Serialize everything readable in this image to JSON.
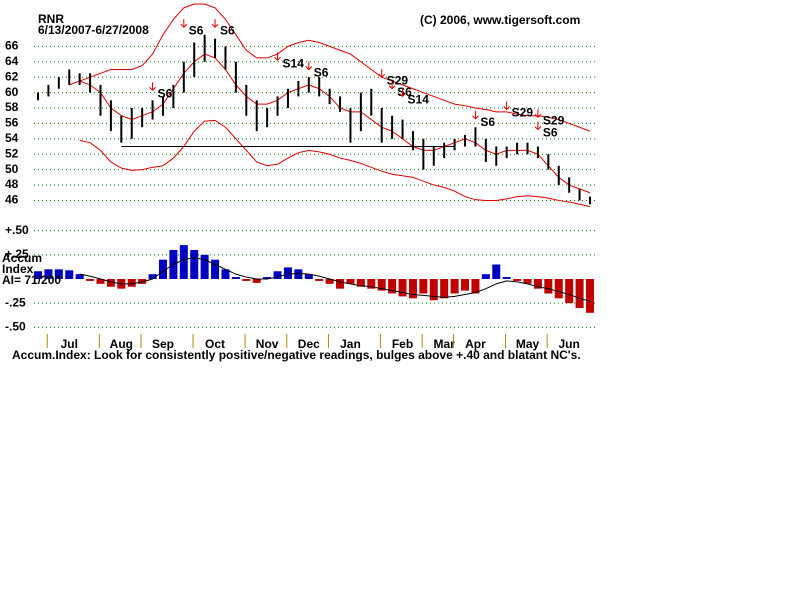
{
  "header": {
    "symbol": "RNR",
    "date_range": "6/13/2007-6/27/2008",
    "copyright": "(C) 2006, www.tigersoft.com"
  },
  "chart_data": [
    {
      "type": "range_bar",
      "categories": [
        null,
        null,
        null,
        "Jul",
        null,
        null,
        null,
        null,
        "Aug",
        null,
        null,
        null,
        "Sep",
        null,
        null,
        null,
        null,
        "Oct",
        null,
        null,
        null,
        null,
        "Nov",
        null,
        null,
        null,
        "Dec",
        null,
        null,
        null,
        "Jan",
        null,
        null,
        null,
        null,
        "Feb",
        null,
        null,
        null,
        "Mar",
        null,
        null,
        "Apr",
        null,
        null,
        null,
        null,
        "May",
        null,
        null,
        null,
        "Jun",
        null,
        null
      ],
      "highs": [
        60,
        61,
        62,
        63,
        62.5,
        62.5,
        61,
        59,
        57,
        58,
        58,
        59,
        59.5,
        61,
        64,
        66.5,
        67.5,
        67,
        66,
        64,
        61,
        59,
        58,
        59.5,
        60.5,
        61.5,
        62,
        62,
        60.5,
        59.5,
        58,
        60,
        60.5,
        58,
        57,
        56.5,
        55,
        54,
        53,
        53.5,
        54,
        54.5,
        55.5,
        54,
        53,
        53,
        53.5,
        53.5,
        53,
        52,
        50.5,
        49,
        47.5,
        46.5
      ],
      "lows": [
        59,
        59.5,
        60.5,
        61,
        61,
        60,
        57,
        55,
        53.5,
        54,
        55.5,
        56.5,
        57,
        58,
        60,
        62,
        64,
        64.5,
        63,
        60,
        57,
        55,
        55.5,
        57,
        58,
        59.5,
        60,
        59.5,
        58.5,
        57.5,
        53.5,
        55,
        57,
        53.5,
        54,
        54,
        52.5,
        50,
        50.5,
        51.5,
        52.5,
        53,
        53,
        51,
        50.5,
        51.5,
        52,
        52,
        51.5,
        50,
        48,
        47,
        46,
        45.5
      ],
      "upper_band": [
        null,
        null,
        null,
        null,
        61.5,
        62,
        62.5,
        63,
        63,
        63,
        63.5,
        65,
        67.5,
        69.5,
        71,
        71.5,
        71.5,
        71,
        69.5,
        67.5,
        65.5,
        64.5,
        64.5,
        65,
        66,
        66.5,
        66.8,
        66.5,
        66,
        65.5,
        65,
        64,
        63,
        62,
        61.5,
        61,
        60.5,
        60,
        59.5,
        59,
        58.5,
        58.3,
        58,
        57.8,
        57.5,
        57.5,
        57.2,
        57,
        57,
        56.8,
        56.5,
        56,
        55.5,
        55
      ],
      "lower_band": [
        null,
        null,
        null,
        null,
        53.8,
        53.5,
        52.5,
        51,
        50.2,
        49.9,
        50,
        50.3,
        50.5,
        51.5,
        53,
        55,
        56.3,
        56.4,
        55.5,
        54,
        52.5,
        51,
        50.5,
        50.7,
        51.5,
        52.2,
        52.5,
        52.3,
        52,
        51.5,
        51.2,
        50.8,
        50.3,
        49.8,
        49.4,
        49.2,
        49,
        48.5,
        48,
        47.7,
        47.2,
        46.5,
        46.1,
        46,
        46,
        46.2,
        46.5,
        46.6,
        46.5,
        46.3,
        46,
        45.8,
        45.5,
        45.2
      ],
      "moving_average": [
        null,
        null,
        null,
        61,
        61.5,
        61,
        60,
        58,
        57,
        56.5,
        57,
        57.5,
        58.5,
        60.5,
        62.5,
        64,
        65,
        64.5,
        63,
        61,
        59.5,
        58.5,
        58.5,
        59,
        60,
        60.5,
        61,
        60.5,
        59.5,
        58,
        57.5,
        57.5,
        56.5,
        55.5,
        55,
        54,
        53,
        52.5,
        52.5,
        53,
        53.5,
        54,
        53.5,
        52.5,
        52,
        52.5,
        52.5,
        52.5,
        52,
        50.5,
        49,
        48,
        47.5,
        47
      ],
      "neckline": [
        null,
        null,
        null,
        null,
        null,
        null,
        null,
        null,
        53,
        53,
        53,
        53,
        53,
        53,
        53,
        53,
        53,
        53,
        53,
        53,
        53,
        53,
        53,
        53,
        53,
        53,
        53,
        53,
        53,
        53,
        53,
        53,
        53,
        53,
        53,
        53,
        53,
        53,
        53,
        53,
        53,
        null,
        null,
        null,
        null,
        null,
        null,
        null,
        null,
        null,
        null,
        null,
        null,
        null
      ],
      "bar_color": "#000000",
      "band_color": "#e00000",
      "neckline_color": "#000000",
      "ylim": [
        44.5,
        71.5
      ],
      "yticks": [
        46,
        48,
        50,
        52,
        54,
        56,
        58,
        60,
        62,
        64,
        66
      ],
      "grid": true,
      "grid_color": "#008000",
      "annotations": [
        {
          "label": "S6",
          "index": 11,
          "y": 60.3
        },
        {
          "label": "S6",
          "index": 14,
          "y": 68.5
        },
        {
          "label": "S6",
          "index": 17,
          "y": 68.5
        },
        {
          "label": "S14",
          "index": 23,
          "y": 64.2
        },
        {
          "label": "S6",
          "index": 26,
          "y": 63
        },
        {
          "label": "S29",
          "index": 33,
          "y": 62
        },
        {
          "label": "S6",
          "index": 34,
          "y": 60.5
        },
        {
          "label": "S14",
          "index": 35,
          "y": 59.5
        },
        {
          "label": "S6",
          "index": 42,
          "y": 56.6
        },
        {
          "label": "S29",
          "index": 45,
          "y": 57.8
        },
        {
          "label": "S29",
          "index": 48,
          "y": 56.8
        },
        {
          "label": "S6",
          "index": 48,
          "y": 55.2
        }
      ],
      "annotation_color": "#e00000"
    },
    {
      "type": "bar",
      "title_lines": [
        "Accum",
        "Index"
      ],
      "ai_label": "AI= 71/200",
      "values": [
        0.08,
        0.1,
        0.1,
        0.09,
        0.05,
        -0.02,
        -0.05,
        -0.08,
        -0.1,
        -0.08,
        -0.05,
        0.05,
        0.2,
        0.3,
        0.35,
        0.3,
        0.25,
        0.2,
        0.1,
        0.02,
        -0.02,
        -0.04,
        0.02,
        0.08,
        0.12,
        0.1,
        0.05,
        -0.02,
        -0.05,
        -0.1,
        -0.05,
        -0.08,
        -0.1,
        -0.12,
        -0.15,
        -0.18,
        -0.2,
        -0.15,
        -0.22,
        -0.2,
        -0.15,
        -0.12,
        -0.15,
        0.05,
        0.15,
        0.02,
        -0.02,
        -0.05,
        -0.1,
        -0.15,
        -0.2,
        -0.25,
        -0.3,
        -0.35
      ],
      "moving_average": [
        null,
        null,
        null,
        null,
        0.05,
        0.03,
        0,
        -0.03,
        -0.05,
        -0.05,
        -0.03,
        0,
        0.08,
        0.15,
        0.2,
        0.22,
        0.2,
        0.15,
        0.1,
        0.05,
        0.02,
        0,
        0,
        0.02,
        0.05,
        0.06,
        0.05,
        0.03,
        0,
        -0.03,
        -0.05,
        -0.07,
        -0.08,
        -0.1,
        -0.12,
        -0.14,
        -0.16,
        -0.17,
        -0.18,
        -0.19,
        -0.18,
        -0.16,
        -0.14,
        -0.1,
        -0.05,
        -0.02,
        -0.03,
        -0.05,
        -0.08,
        -0.1,
        -0.13,
        -0.16,
        -0.2,
        -0.23
      ],
      "positive_color": "#0000c0",
      "negative_color": "#c00000",
      "line_color": "#000000",
      "ylim": [
        -0.6,
        0.6
      ],
      "yticks": [
        {
          "value": 0.5,
          "label": "+.50"
        },
        {
          "value": 0.25,
          "label": "+.25"
        },
        {
          "value": -0.25,
          "label": "-.25"
        },
        {
          "value": -0.5,
          "label": "-.50"
        }
      ],
      "grid": true,
      "grid_color": "#008000"
    }
  ],
  "footnote": "Accum.Index: Look for consistently positive/negative readings, bulges above +.40 and blatant NC's."
}
